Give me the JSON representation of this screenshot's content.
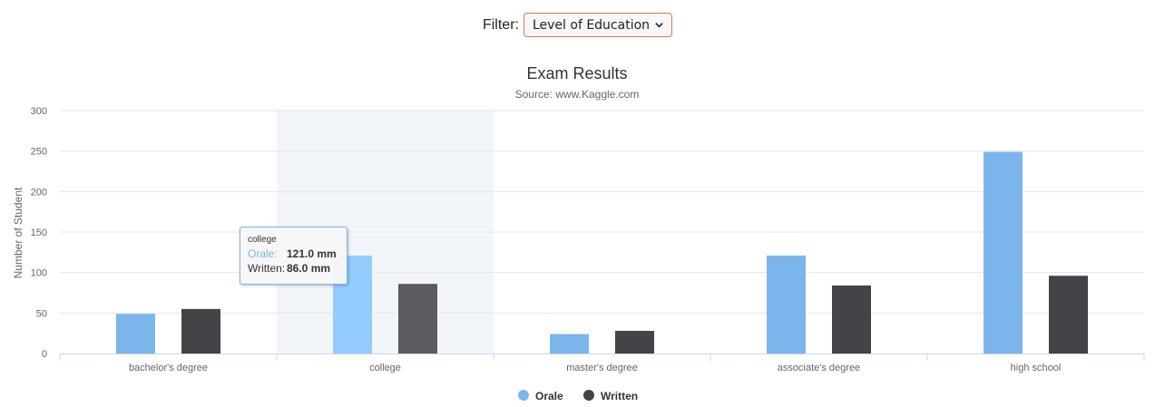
{
  "filter": {
    "label": "Filter:",
    "selected": "Level of Education"
  },
  "chart_data": {
    "type": "bar",
    "title": "Exam Results",
    "subtitle": "Source: www.Kaggle.com",
    "xlabel": "",
    "ylabel": "Number of Student",
    "ylim": [
      0,
      300
    ],
    "yticks": [
      0,
      50,
      100,
      150,
      200,
      250,
      300
    ],
    "grid": true,
    "legend_position": "bottom-center",
    "categories": [
      "bachelor's degree",
      "college",
      "master's degree",
      "associate's degree",
      "high school"
    ],
    "series": [
      {
        "name": "Orale",
        "color": "#7cb5ec",
        "values": [
          49,
          121,
          24,
          121,
          249
        ]
      },
      {
        "name": "Written",
        "color": "#434348",
        "values": [
          55,
          86,
          28,
          84,
          96
        ]
      }
    ],
    "hovered_category_index": 1,
    "tooltip": {
      "header": "college",
      "rows": [
        {
          "name": "Orale:",
          "value": "121.0 mm"
        },
        {
          "name": "Written:",
          "value": "86.0 mm"
        }
      ]
    }
  }
}
